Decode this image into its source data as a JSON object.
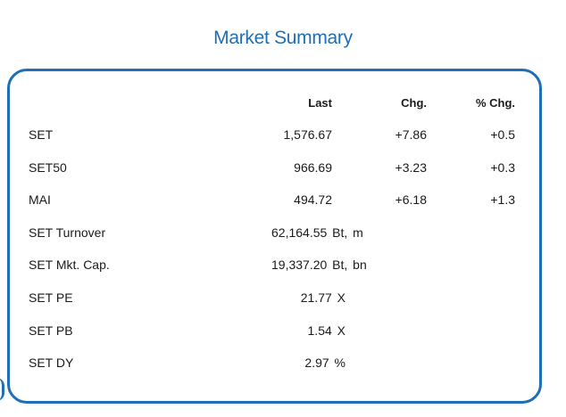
{
  "title": "Market Summary",
  "colors": {
    "accent": "#1f6fb5"
  },
  "headers": {
    "last": "Last",
    "chg": "Chg.",
    "pct_chg": "% Chg."
  },
  "indices": [
    {
      "name": "SET",
      "last": "1,576.67",
      "chg": "+7.86",
      "pct": "+0.5"
    },
    {
      "name": "SET50",
      "last": "966.69",
      "chg": "+3.23",
      "pct": "+0.3"
    },
    {
      "name": "MAI",
      "last": "494.72",
      "chg": "+6.18",
      "pct": "+1.3"
    }
  ],
  "stats": [
    {
      "name": "SET Turnover",
      "value": "62,164.55 Bt, m"
    },
    {
      "name": "SET Mkt. Cap.",
      "value": "19,337.20 Bt, bn"
    },
    {
      "name": "SET PE",
      "value": "21.77 X"
    },
    {
      "name": "SET PB",
      "value": "1.54 X"
    },
    {
      "name": "SET DY",
      "value": "2.97 %"
    }
  ]
}
